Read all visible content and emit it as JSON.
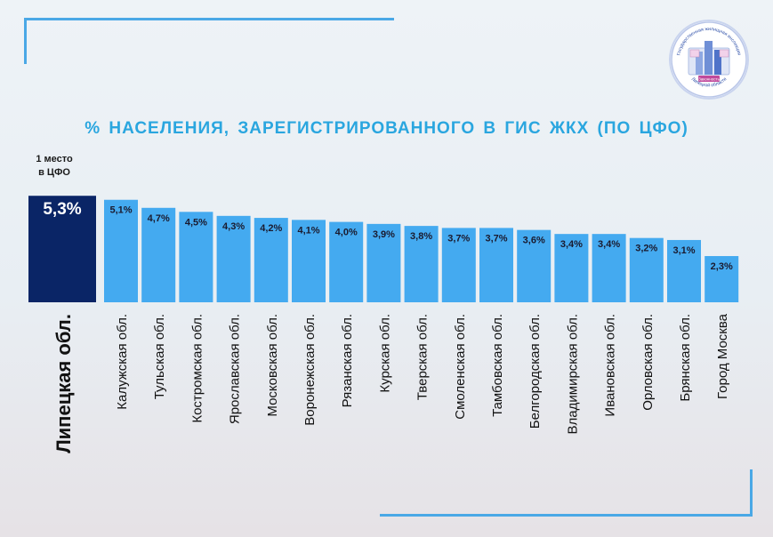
{
  "title": "% НАСЕЛЕНИЯ, ЗАРЕГИСТРИРОВАННОГО В ГИС ЖКХ (ПО ЦФО)",
  "first_place_note": [
    "1 место",
    "в ЦФО"
  ],
  "logo": {
    "icon": "housing-inspection-emblem",
    "text_top": "Государственная жилищная инспекция",
    "text_bottom": "Липецкой области",
    "text_center": "Законность"
  },
  "colors": {
    "highlight": "#0a2566",
    "bar": "#44aaf0",
    "accent": "#4aa8e6",
    "title": "#2aa6df"
  },
  "chart_data": {
    "type": "bar",
    "categories": [
      "Липецкая обл.",
      "Калужская обл.",
      "Тульская обл.",
      "Костромская обл.",
      "Ярославская обл.",
      "Московская обл.",
      "Воронежская обл.",
      "Рязанская обл.",
      "Курская обл.",
      "Тверская обл.",
      "Смоленская обл.",
      "Тамбовская обл.",
      "Белгородская обл.",
      "Владимирская обл.",
      "Ивановская обл.",
      "Орловская обл.",
      "Брянская обл.",
      "Город Москва"
    ],
    "values": [
      5.3,
      5.1,
      4.7,
      4.5,
      4.3,
      4.2,
      4.1,
      4.0,
      3.9,
      3.8,
      3.7,
      3.7,
      3.6,
      3.4,
      3.4,
      3.2,
      3.1,
      2.3
    ],
    "value_labels": [
      "5,3%",
      "5,1%",
      "4,7%",
      "4,5%",
      "4,3%",
      "4,2%",
      "4,1%",
      "4,0%",
      "3,9%",
      "3,8%",
      "3,7%",
      "3,7%",
      "3,6%",
      "3,4%",
      "3,4%",
      "3,2%",
      "3,1%",
      "2,3%"
    ],
    "highlight_index": 0,
    "unit": "%"
  }
}
